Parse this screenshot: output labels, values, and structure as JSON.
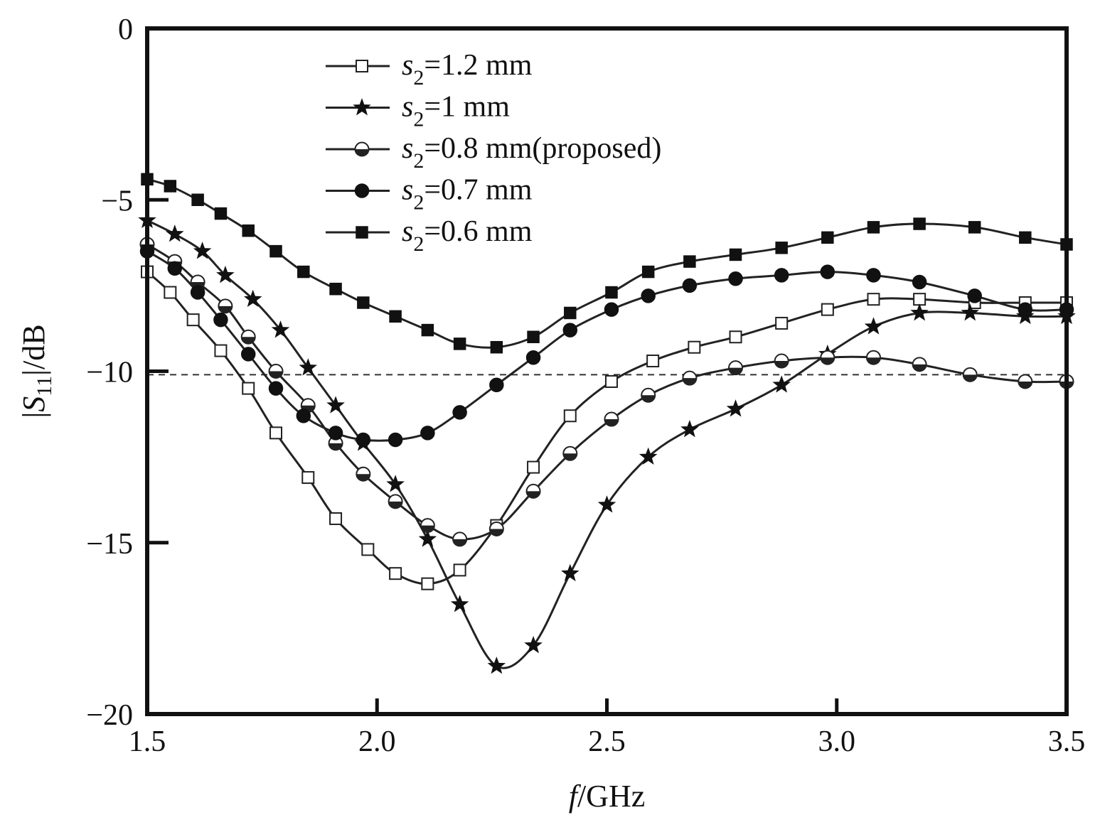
{
  "chart_data": {
    "type": "line",
    "xlabel": {
      "italic": "f",
      "rest": "/GHz"
    },
    "ylabel": {
      "pre": "|",
      "italic": "S",
      "sub": "11",
      "post": "|/dB"
    },
    "xlim": [
      1.5,
      3.5
    ],
    "ylim": [
      -20,
      0
    ],
    "xticks": [
      1.5,
      2.0,
      2.5,
      3.0,
      3.5
    ],
    "xtick_labels": [
      "1.5",
      "2.0",
      "2.5",
      "3.0",
      "3.5"
    ],
    "yticks": [
      0,
      -5,
      -10,
      -15,
      -20
    ],
    "ytick_labels": [
      "0",
      "−5",
      "−10",
      "−15",
      "−20"
    ],
    "reference_line": {
      "y": -10.1,
      "style": "dashed"
    },
    "legend_position": "top-left",
    "grid": false,
    "series": [
      {
        "name": {
          "italic": "s",
          "sub": "2",
          "rest": "=1.2 mm"
        },
        "marker": "square-open",
        "x": [
          1.5,
          1.55,
          1.6,
          1.66,
          1.72,
          1.78,
          1.85,
          1.91,
          1.98,
          2.04,
          2.11,
          2.18,
          2.26,
          2.34,
          2.42,
          2.51,
          2.6,
          2.69,
          2.78,
          2.88,
          2.98,
          3.08,
          3.18,
          3.3,
          3.41,
          3.5
        ],
        "y": [
          -7.1,
          -7.7,
          -8.5,
          -9.4,
          -10.5,
          -11.8,
          -13.1,
          -14.3,
          -15.2,
          -15.9,
          -16.2,
          -15.8,
          -14.5,
          -12.8,
          -11.3,
          -10.3,
          -9.7,
          -9.3,
          -9.0,
          -8.6,
          -8.2,
          -7.9,
          -7.9,
          -8.0,
          -8.0,
          -8.0
        ]
      },
      {
        "name": {
          "italic": "s",
          "sub": "2",
          "rest": "=1 mm"
        },
        "marker": "star",
        "x": [
          1.5,
          1.56,
          1.62,
          1.67,
          1.73,
          1.79,
          1.85,
          1.91,
          1.97,
          2.04,
          2.11,
          2.18,
          2.26,
          2.34,
          2.42,
          2.5,
          2.59,
          2.68,
          2.78,
          2.88,
          2.98,
          3.08,
          3.18,
          3.29,
          3.41,
          3.5
        ],
        "y": [
          -5.6,
          -6.0,
          -6.5,
          -7.2,
          -7.9,
          -8.8,
          -9.9,
          -11.0,
          -12.1,
          -13.3,
          -14.9,
          -16.8,
          -18.6,
          -18.0,
          -15.9,
          -13.9,
          -12.5,
          -11.7,
          -11.1,
          -10.4,
          -9.5,
          -8.7,
          -8.3,
          -8.3,
          -8.4,
          -8.4
        ]
      },
      {
        "name": {
          "italic": "s",
          "sub": "2",
          "rest": "=0.8 mm(proposed)"
        },
        "marker": "circle-half",
        "x": [
          1.5,
          1.56,
          1.61,
          1.67,
          1.72,
          1.78,
          1.85,
          1.91,
          1.97,
          2.04,
          2.11,
          2.18,
          2.26,
          2.34,
          2.42,
          2.51,
          2.59,
          2.68,
          2.78,
          2.88,
          2.98,
          3.08,
          3.18,
          3.29,
          3.41,
          3.5
        ],
        "y": [
          -6.3,
          -6.8,
          -7.4,
          -8.1,
          -9.0,
          -10.0,
          -11.0,
          -12.1,
          -13.0,
          -13.8,
          -14.5,
          -14.9,
          -14.6,
          -13.5,
          -12.4,
          -11.4,
          -10.7,
          -10.2,
          -9.9,
          -9.7,
          -9.6,
          -9.6,
          -9.8,
          -10.1,
          -10.3,
          -10.3
        ]
      },
      {
        "name": {
          "italic": "s",
          "sub": "2",
          "rest": "=0.7 mm"
        },
        "marker": "circle-filled",
        "x": [
          1.5,
          1.56,
          1.61,
          1.66,
          1.72,
          1.78,
          1.84,
          1.91,
          1.97,
          2.04,
          2.11,
          2.18,
          2.26,
          2.34,
          2.42,
          2.51,
          2.59,
          2.68,
          2.78,
          2.88,
          2.98,
          3.08,
          3.18,
          3.3,
          3.41,
          3.5
        ],
        "y": [
          -6.5,
          -7.0,
          -7.7,
          -8.5,
          -9.5,
          -10.5,
          -11.3,
          -11.8,
          -12.0,
          -12.0,
          -11.8,
          -11.2,
          -10.4,
          -9.6,
          -8.8,
          -8.2,
          -7.8,
          -7.5,
          -7.3,
          -7.2,
          -7.1,
          -7.2,
          -7.4,
          -7.8,
          -8.2,
          -8.2
        ]
      },
      {
        "name": {
          "italic": "s",
          "sub": "2",
          "rest": "=0.6 mm"
        },
        "marker": "square-filled",
        "x": [
          1.5,
          1.55,
          1.61,
          1.66,
          1.72,
          1.78,
          1.84,
          1.91,
          1.97,
          2.04,
          2.11,
          2.18,
          2.26,
          2.34,
          2.42,
          2.51,
          2.59,
          2.68,
          2.78,
          2.88,
          2.98,
          3.08,
          3.18,
          3.3,
          3.41,
          3.5
        ],
        "y": [
          -4.4,
          -4.6,
          -5.0,
          -5.4,
          -5.9,
          -6.5,
          -7.1,
          -7.6,
          -8.0,
          -8.4,
          -8.8,
          -9.2,
          -9.3,
          -9.0,
          -8.3,
          -7.7,
          -7.1,
          -6.8,
          -6.6,
          -6.4,
          -6.1,
          -5.8,
          -5.7,
          -5.8,
          -6.1,
          -6.3
        ]
      }
    ]
  }
}
